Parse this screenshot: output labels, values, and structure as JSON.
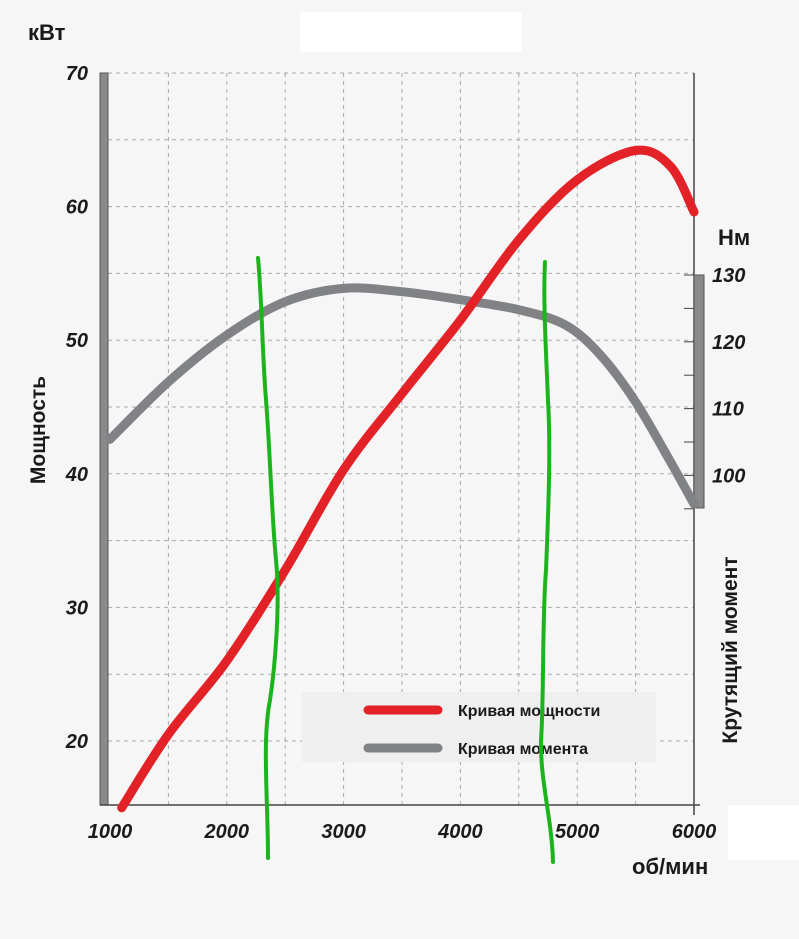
{
  "chart_data": {
    "type": "line",
    "title": "",
    "xlabel": "об/мин",
    "ylabel": "Мощность",
    "ylabel_unit": "кВт",
    "y2label": "Крутящий момент",
    "y2label_unit": "Нм",
    "xlim": [
      1000,
      6000
    ],
    "ylim": [
      15,
      70
    ],
    "y2lim": [
      95,
      130
    ],
    "x_ticks": [
      "1000",
      "2000",
      "3000",
      "4000",
      "5000",
      "6000"
    ],
    "y_ticks": [
      "20",
      "30",
      "40",
      "50",
      "60",
      "70"
    ],
    "y2_ticks": [
      "100",
      "110",
      "120",
      "130"
    ],
    "grid": true,
    "legend_position": "bottom-center",
    "series": [
      {
        "name": "Кривая мощности",
        "axis": "left",
        "color": "#e32228",
        "x": [
          1100,
          1500,
          2000,
          2500,
          3000,
          3500,
          4000,
          4500,
          5000,
          5500,
          5800,
          6000
        ],
        "y": [
          15,
          20.5,
          26,
          32.8,
          40.3,
          46,
          51.5,
          57.5,
          62,
          64.2,
          63,
          59.6
        ]
      },
      {
        "name": "Кривая момента",
        "axis": "right",
        "color": "#808285",
        "x": [
          1000,
          1500,
          2000,
          2500,
          3000,
          3500,
          4000,
          4500,
          4900,
          5200,
          5500,
          5800,
          6000
        ],
        "y": [
          105.4,
          114,
          121,
          126,
          128,
          127.5,
          126.3,
          124.8,
          122.5,
          118,
          111,
          102,
          95.7
        ]
      }
    ],
    "annotations": [
      {
        "type": "hand-drawn-line",
        "color": "#1db31d",
        "x_rpm": [
          2300,
          2500
        ]
      },
      {
        "type": "hand-drawn-line",
        "color": "#1db31d",
        "x_rpm": [
          4700,
          4800
        ]
      }
    ]
  }
}
